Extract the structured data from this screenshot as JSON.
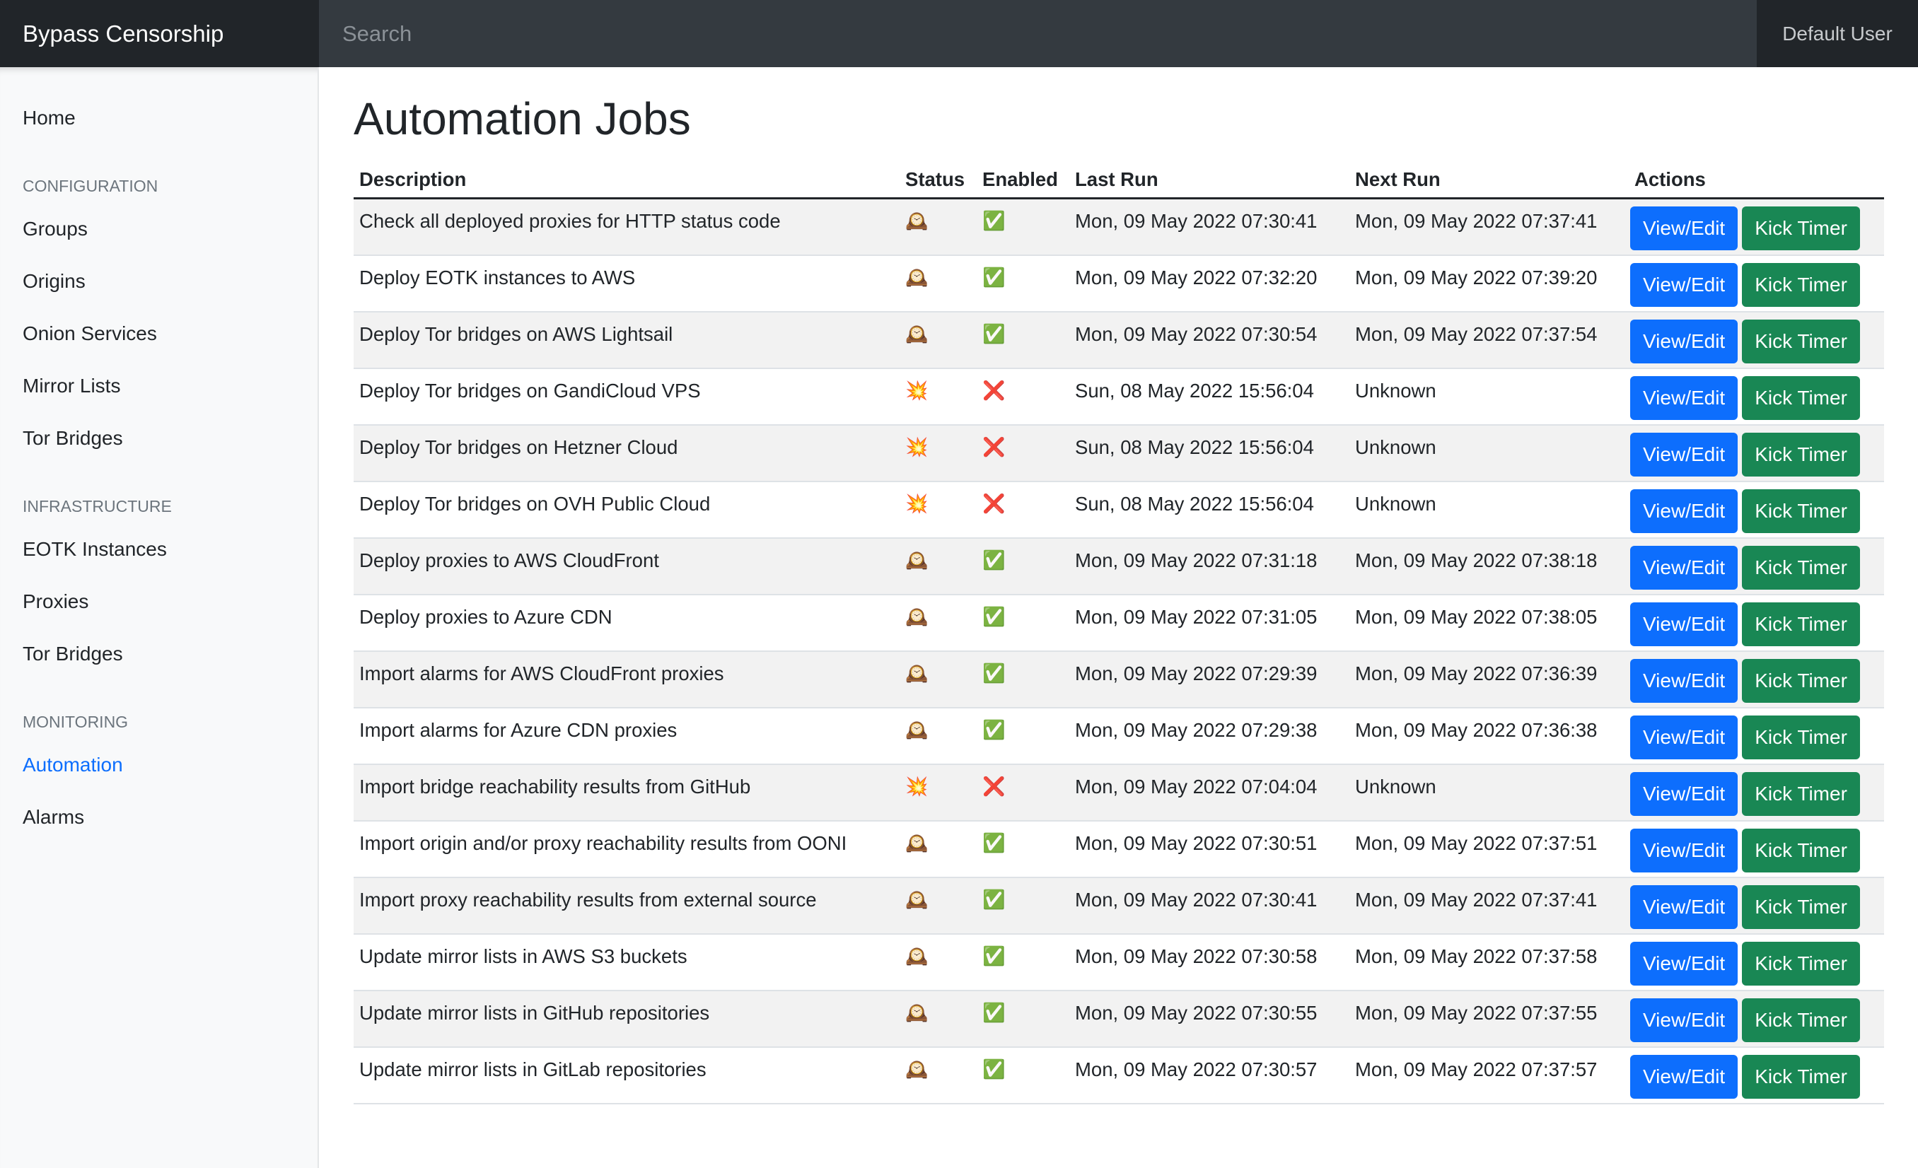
{
  "navbar": {
    "brand": "Bypass Censorship",
    "search_placeholder": "Search",
    "user": "Default User"
  },
  "sidebar": {
    "home": "Home",
    "sections": [
      {
        "heading": "CONFIGURATION",
        "items": [
          "Groups",
          "Origins",
          "Onion Services",
          "Mirror Lists",
          "Tor Bridges"
        ]
      },
      {
        "heading": "INFRASTRUCTURE",
        "items": [
          "EOTK Instances",
          "Proxies",
          "Tor Bridges"
        ]
      },
      {
        "heading": "MONITORING",
        "items": [
          "Automation",
          "Alarms"
        ]
      }
    ],
    "active": "Automation"
  },
  "page": {
    "title": "Automation Jobs"
  },
  "table": {
    "headers": [
      "Description",
      "Status",
      "Enabled",
      "Last Run",
      "Next Run",
      "Actions"
    ],
    "actions": [
      "View/Edit",
      "Kick Timer"
    ],
    "rows": [
      [
        "Check all deployed proxies for HTTP status code",
        "🕰️",
        "✅",
        "Mon, 09 May 2022 07:30:41",
        "Mon, 09 May 2022 07:37:41"
      ],
      [
        "Deploy EOTK instances to AWS",
        "🕰️",
        "✅",
        "Mon, 09 May 2022 07:32:20",
        "Mon, 09 May 2022 07:39:20"
      ],
      [
        "Deploy Tor bridges on AWS Lightsail",
        "🕰️",
        "✅",
        "Mon, 09 May 2022 07:30:54",
        "Mon, 09 May 2022 07:37:54"
      ],
      [
        "Deploy Tor bridges on GandiCloud VPS",
        "💥",
        "❌",
        "Sun, 08 May 2022 15:56:04",
        "Unknown"
      ],
      [
        "Deploy Tor bridges on Hetzner Cloud",
        "💥",
        "❌",
        "Sun, 08 May 2022 15:56:04",
        "Unknown"
      ],
      [
        "Deploy Tor bridges on OVH Public Cloud",
        "💥",
        "❌",
        "Sun, 08 May 2022 15:56:04",
        "Unknown"
      ],
      [
        "Deploy proxies to AWS CloudFront",
        "🕰️",
        "✅",
        "Mon, 09 May 2022 07:31:18",
        "Mon, 09 May 2022 07:38:18"
      ],
      [
        "Deploy proxies to Azure CDN",
        "🕰️",
        "✅",
        "Mon, 09 May 2022 07:31:05",
        "Mon, 09 May 2022 07:38:05"
      ],
      [
        "Import alarms for AWS CloudFront proxies",
        "🕰️",
        "✅",
        "Mon, 09 May 2022 07:29:39",
        "Mon, 09 May 2022 07:36:39"
      ],
      [
        "Import alarms for Azure CDN proxies",
        "🕰️",
        "✅",
        "Mon, 09 May 2022 07:29:38",
        "Mon, 09 May 2022 07:36:38"
      ],
      [
        "Import bridge reachability results from GitHub",
        "💥",
        "❌",
        "Mon, 09 May 2022 07:04:04",
        "Unknown"
      ],
      [
        "Import origin and/or proxy reachability results from OONI",
        "🕰️",
        "✅",
        "Mon, 09 May 2022 07:30:51",
        "Mon, 09 May 2022 07:37:51"
      ],
      [
        "Import proxy reachability results from external source",
        "🕰️",
        "✅",
        "Mon, 09 May 2022 07:30:41",
        "Mon, 09 May 2022 07:37:41"
      ],
      [
        "Update mirror lists in AWS S3 buckets",
        "🕰️",
        "✅",
        "Mon, 09 May 2022 07:30:58",
        "Mon, 09 May 2022 07:37:58"
      ],
      [
        "Update mirror lists in GitHub repositories",
        "🕰️",
        "✅",
        "Mon, 09 May 2022 07:30:55",
        "Mon, 09 May 2022 07:37:55"
      ],
      [
        "Update mirror lists in GitLab repositories",
        "🕰️",
        "✅",
        "Mon, 09 May 2022 07:30:57",
        "Mon, 09 May 2022 07:37:57"
      ]
    ]
  }
}
